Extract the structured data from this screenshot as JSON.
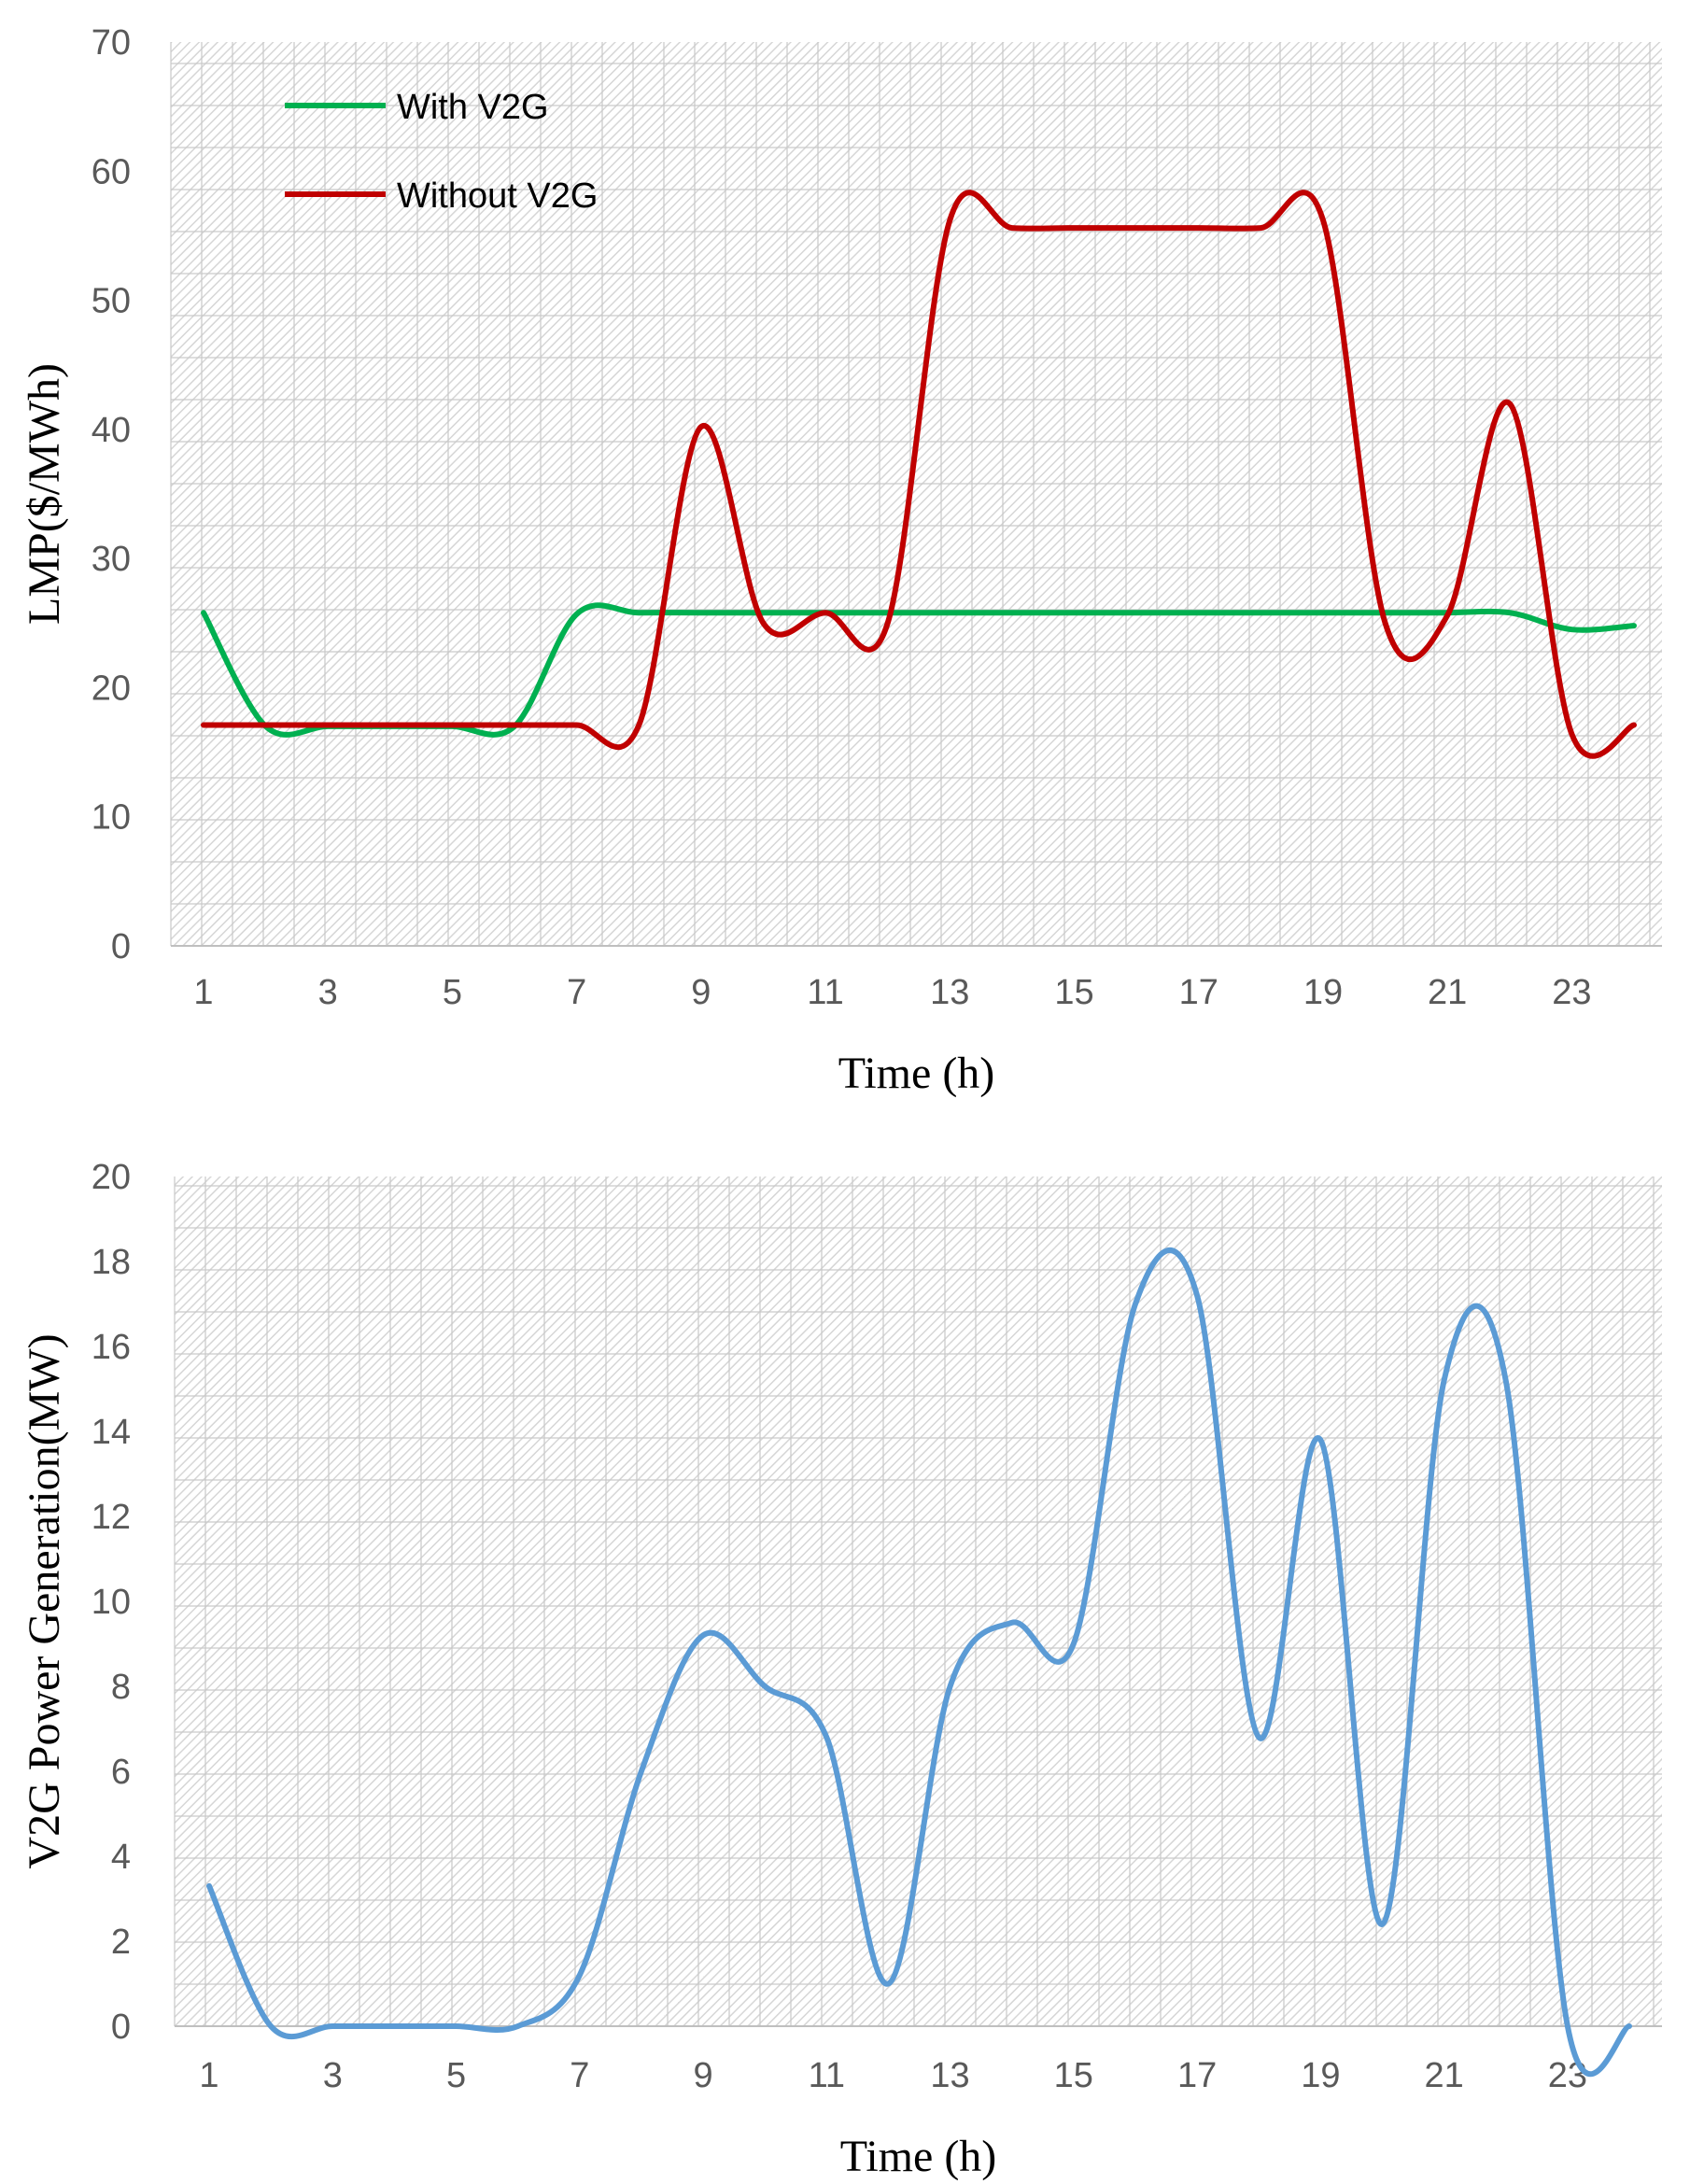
{
  "chart_data": [
    {
      "type": "line",
      "x": [
        1,
        2,
        3,
        4,
        5,
        6,
        7,
        8,
        9,
        10,
        11,
        12,
        13,
        14,
        15,
        16,
        17,
        18,
        19,
        20,
        21,
        22,
        23,
        24
      ],
      "xticks": [
        "1",
        "3",
        "5",
        "7",
        "9",
        "11",
        "13",
        "15",
        "17",
        "19",
        "21",
        "23"
      ],
      "yticks": [
        "0",
        "10",
        "20",
        "30",
        "40",
        "50",
        "60",
        "70"
      ],
      "ylim": [
        0,
        70
      ],
      "xlabel": "Time (h)",
      "ylabel": "LMP($/MWh)",
      "grid": true,
      "legend": "top-left",
      "series": [
        {
          "name": "With V2G",
          "color": "#00b050",
          "values": [
            25.8,
            17.0,
            17.0,
            17.0,
            17.0,
            17.0,
            25.7,
            25.8,
            25.8,
            25.8,
            25.8,
            25.8,
            25.8,
            25.8,
            25.8,
            25.8,
            25.8,
            25.8,
            25.8,
            25.8,
            25.8,
            25.8,
            24.5,
            24.8
          ]
        },
        {
          "name": "Without V2G",
          "color": "#c00000",
          "values": [
            17.1,
            17.1,
            17.1,
            17.1,
            17.1,
            17.1,
            17.1,
            17.1,
            40.2,
            25.0,
            25.8,
            25.0,
            56.2,
            55.6,
            55.6,
            55.6,
            55.6,
            55.6,
            56.2,
            25.0,
            25.6,
            42.0,
            16.4,
            17.1
          ]
        }
      ]
    },
    {
      "type": "line",
      "x": [
        1,
        2,
        3,
        4,
        5,
        6,
        7,
        8,
        9,
        10,
        11,
        12,
        13,
        14,
        15,
        16,
        17,
        18,
        19,
        20,
        21,
        22,
        23,
        24
      ],
      "xticks": [
        "1",
        "3",
        "5",
        "7",
        "9",
        "11",
        "13",
        "15",
        "17",
        "19",
        "21",
        "23"
      ],
      "yticks": [
        "0",
        "2",
        "4",
        "6",
        "8",
        "10",
        "12",
        "14",
        "16",
        "18",
        "20"
      ],
      "ylim": [
        0,
        20
      ],
      "xlabel": "Time (h)",
      "ylabel": "V2G Power Generation(MW)",
      "grid": true,
      "series": [
        {
          "color": "#5b9bd5",
          "values": [
            3.3,
            0,
            0,
            0,
            0,
            0,
            1.2,
            6.0,
            9.2,
            8.0,
            6.8,
            1.0,
            8.0,
            9.5,
            9.0,
            17.0,
            17.2,
            6.8,
            13.8,
            2.4,
            15.2,
            15.2,
            0,
            0
          ]
        }
      ]
    }
  ]
}
